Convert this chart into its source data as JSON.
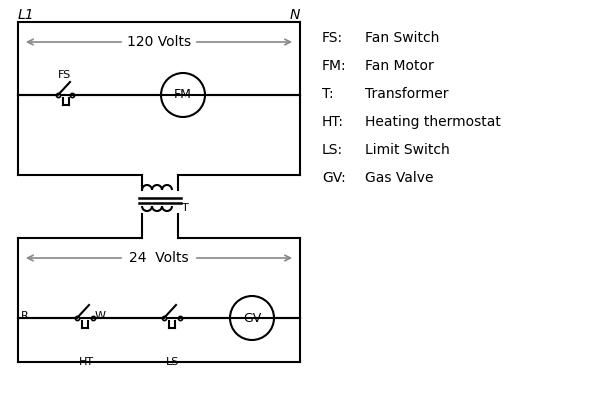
{
  "bg_color": "#ffffff",
  "line_color": "#000000",
  "arrow_color": "#888888",
  "line_width": 1.5,
  "legend_items": [
    [
      "FS:",
      "Fan Switch"
    ],
    [
      "FM:",
      "Fan Motor"
    ],
    [
      "T:",
      "Transformer"
    ],
    [
      "HT:",
      "Heating thermostat"
    ],
    [
      "LS:",
      "Limit Switch"
    ],
    [
      "GV:",
      "Gas Valve"
    ]
  ],
  "l1_label": "L1",
  "n_label": "N",
  "volts120": "120 Volts",
  "volts24": "24  Volts"
}
